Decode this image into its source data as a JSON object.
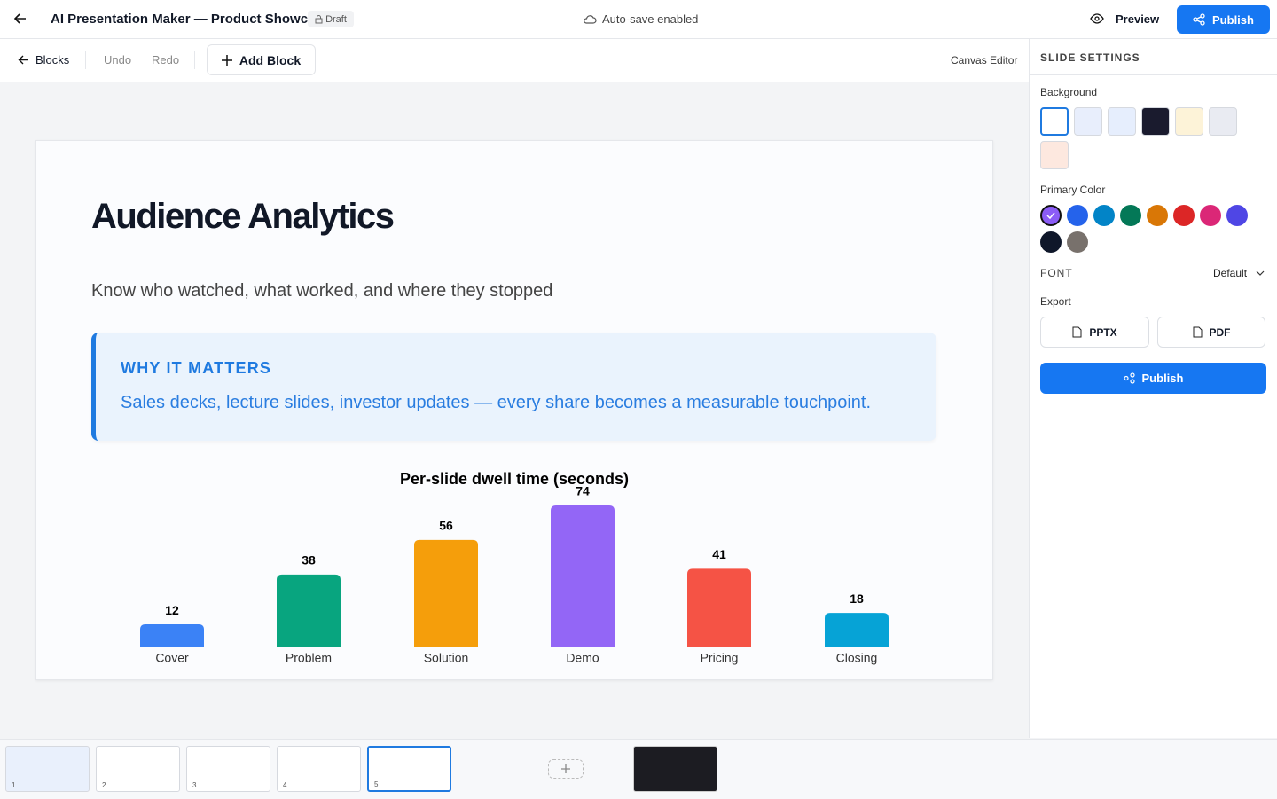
{
  "header": {
    "title": "AI Presentation Maker — Product Showcase",
    "badge": "Draft",
    "status": "Auto-save enabled",
    "preview": "Preview",
    "publish": "Publish"
  },
  "toolbar": {
    "back": "Blocks",
    "undo": "Undo",
    "redo": "Redo",
    "add_block": "Add Block",
    "mode": "Canvas Editor"
  },
  "slide": {
    "title": "Audience Analytics",
    "subtitle": "Know who watched, what worked, and where they stopped",
    "callout": {
      "label": "WHY IT MATTERS",
      "text": "Sales decks, lecture slides, investor updates — every share becomes a measurable touchpoint."
    }
  },
  "chart_data": {
    "type": "bar",
    "title": "Per-slide dwell time (seconds)",
    "categories": [
      "Cover",
      "Problem",
      "Solution",
      "Demo",
      "Pricing",
      "Closing"
    ],
    "values": [
      12,
      38,
      56,
      74,
      41,
      18
    ],
    "colors": [
      "#3b82f6",
      "#08a57f",
      "#f59e0b",
      "#9366f6",
      "#f55345",
      "#06a3d6"
    ]
  },
  "sidebar": {
    "title": "SLIDE SETTINGS",
    "background_label": "Background",
    "background_colors": [
      "#ffffff",
      "#e8eefc",
      "#e6eefd",
      "#1a1b2e",
      "#fdf3d8",
      "#e9ebf2",
      "#fde8df"
    ],
    "primary_label": "Primary Color",
    "primary_colors": [
      "#8b5cf6",
      "#2563eb",
      "#0284c7",
      "#047857",
      "#d97706",
      "#dc2626",
      "#db2777",
      "#4f46e5",
      "#0f172a",
      "#78716c"
    ],
    "font_label": "FONT",
    "font_value": "Default",
    "export_label": "Export",
    "pptx": "PPTX",
    "pdf": "PDF",
    "publish": "Publish"
  },
  "thumbnails": {
    "numbers": [
      "1",
      "2",
      "3",
      "4",
      "5"
    ]
  }
}
